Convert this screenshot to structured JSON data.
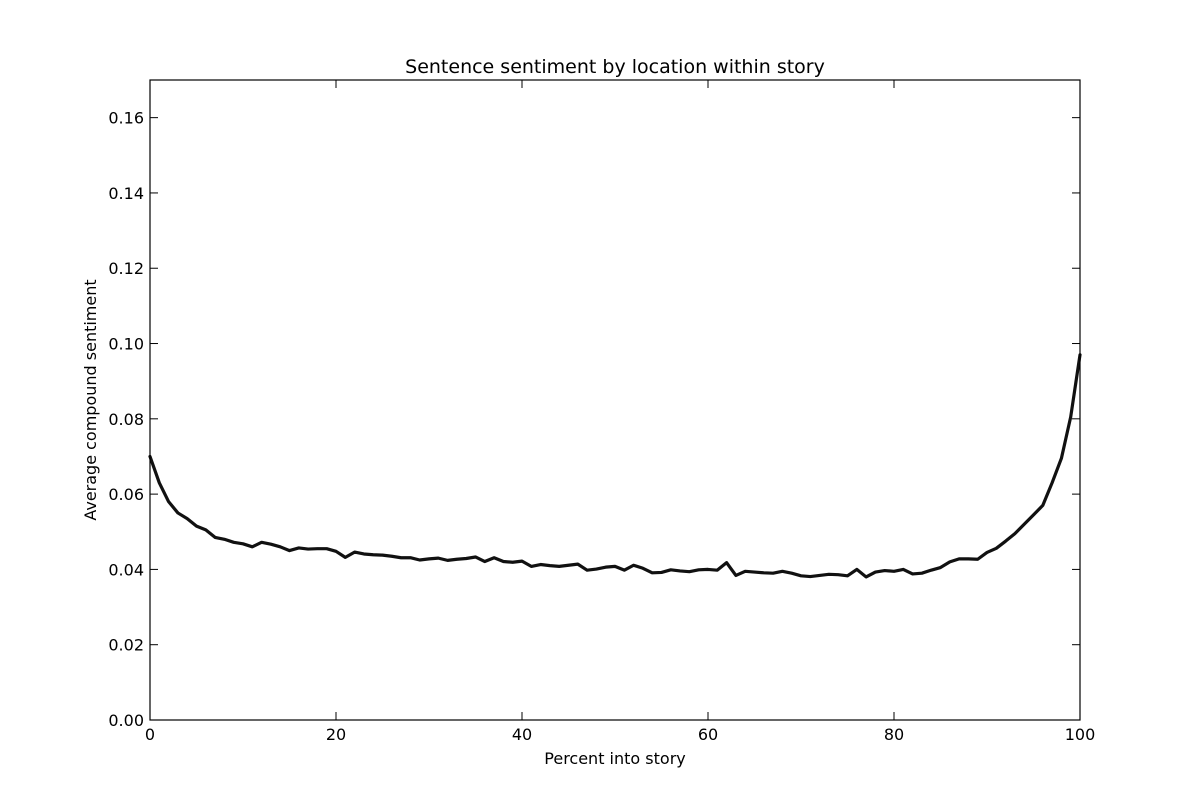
{
  "chart_data": {
    "type": "line",
    "title": "Sentence sentiment by location within story",
    "xlabel": "Percent into story",
    "ylabel": "Average compound sentiment",
    "xlim": [
      0,
      100
    ],
    "ylim": [
      0.0,
      0.17
    ],
    "x_ticks": [
      "0",
      "20",
      "40",
      "60",
      "80",
      "100"
    ],
    "y_ticks": [
      "0.00",
      "0.02",
      "0.04",
      "0.06",
      "0.08",
      "0.10",
      "0.12",
      "0.14",
      "0.16"
    ],
    "grid": false,
    "legend": "none",
    "line_color": "#111111",
    "series": [
      {
        "x": [
          0,
          1,
          2,
          3,
          4,
          5,
          6,
          7,
          8,
          9,
          10,
          11,
          12,
          13,
          14,
          15,
          16,
          17,
          18,
          19,
          20,
          21,
          22,
          23,
          24,
          25,
          26,
          27,
          28,
          29,
          30,
          31,
          32,
          33,
          34,
          35,
          36,
          37,
          38,
          39,
          40,
          41,
          42,
          43,
          44,
          45,
          46,
          47,
          48,
          49,
          50,
          51,
          52,
          53,
          54,
          55,
          56,
          57,
          58,
          59,
          60,
          61,
          62,
          63,
          64,
          65,
          66,
          67,
          68,
          69,
          70,
          71,
          72,
          73,
          74,
          75,
          76,
          77,
          78,
          79,
          80,
          81,
          82,
          83,
          84,
          85,
          86,
          87,
          88,
          89,
          90,
          91,
          92,
          93,
          94,
          95,
          96,
          97,
          98,
          99,
          100
        ],
        "values": [
          0.07,
          0.063,
          0.058,
          0.055,
          0.0535,
          0.0515,
          0.0505,
          0.0485,
          0.048,
          0.0472,
          0.0468,
          0.046,
          0.0472,
          0.0467,
          0.046,
          0.045,
          0.0457,
          0.0454,
          0.0455,
          0.0455,
          0.0448,
          0.0432,
          0.0446,
          0.0441,
          0.0439,
          0.0438,
          0.0435,
          0.0431,
          0.0431,
          0.0425,
          0.0428,
          0.043,
          0.0424,
          0.0427,
          0.0429,
          0.0433,
          0.0421,
          0.0431,
          0.0421,
          0.0419,
          0.0422,
          0.0408,
          0.0413,
          0.041,
          0.0408,
          0.0411,
          0.0414,
          0.0398,
          0.0401,
          0.0406,
          0.0408,
          0.0398,
          0.0411,
          0.0403,
          0.0391,
          0.0392,
          0.0399,
          0.0396,
          0.0394,
          0.0399,
          0.04,
          0.0398,
          0.0418,
          0.0384,
          0.0395,
          0.0393,
          0.0391,
          0.039,
          0.0395,
          0.039,
          0.0383,
          0.0381,
          0.0384,
          0.0387,
          0.0386,
          0.0383,
          0.04,
          0.038,
          0.0393,
          0.0397,
          0.0395,
          0.04,
          0.0388,
          0.039,
          0.0398,
          0.0405,
          0.042,
          0.0428,
          0.0428,
          0.0427,
          0.0445,
          0.0456,
          0.0475,
          0.0495,
          0.052,
          0.0545,
          0.057,
          0.063,
          0.0695,
          0.0805,
          0.097
        ]
      }
    ]
  }
}
